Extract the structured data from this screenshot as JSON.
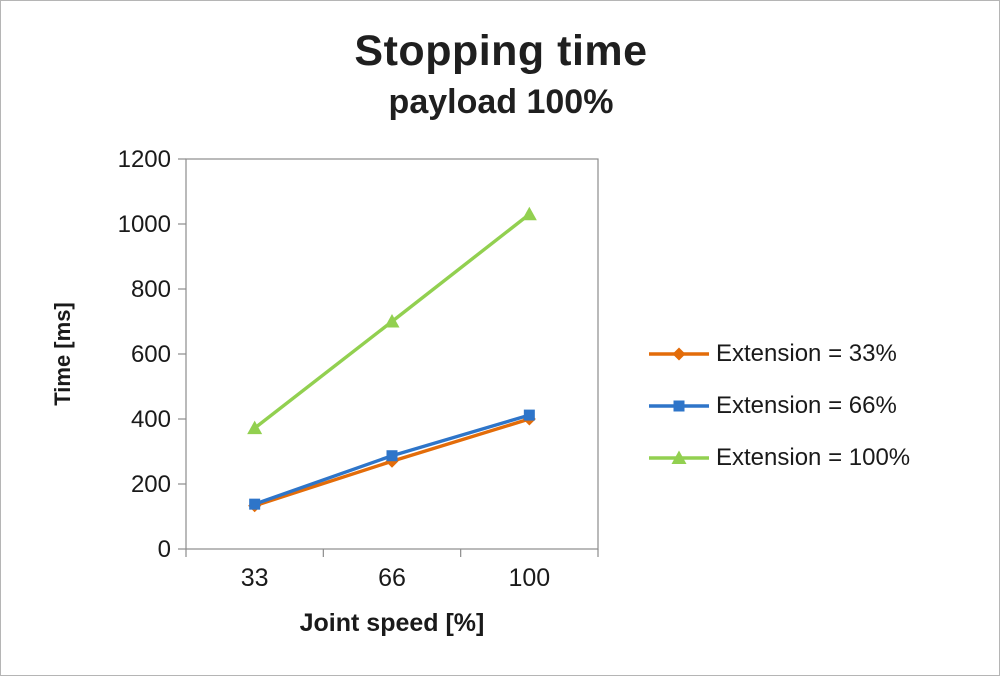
{
  "chart_data": {
    "type": "line",
    "title": "Stopping time",
    "subtitle": "payload 100%",
    "xlabel": "Joint speed [%]",
    "ylabel": "Time [ms]",
    "categories": [
      "33",
      "66",
      "100"
    ],
    "ylim": [
      0,
      1200
    ],
    "y_ticks": [
      0,
      200,
      400,
      600,
      800,
      1000,
      1200
    ],
    "grid": false,
    "legend_position": "right",
    "axis_color": "#8c8c8c",
    "text_color": "#1a1a1a",
    "series": [
      {
        "name": "Extension = 33%",
        "color": "#e36c09",
        "marker": "diamond",
        "values": [
          133,
          270,
          400
        ]
      },
      {
        "name": "Extension = 66%",
        "color": "#2e75c9",
        "marker": "square",
        "values": [
          138,
          287,
          412
        ]
      },
      {
        "name": "Extension = 100%",
        "color": "#92d050",
        "marker": "triangle",
        "values": [
          372,
          700,
          1030
        ]
      }
    ]
  }
}
